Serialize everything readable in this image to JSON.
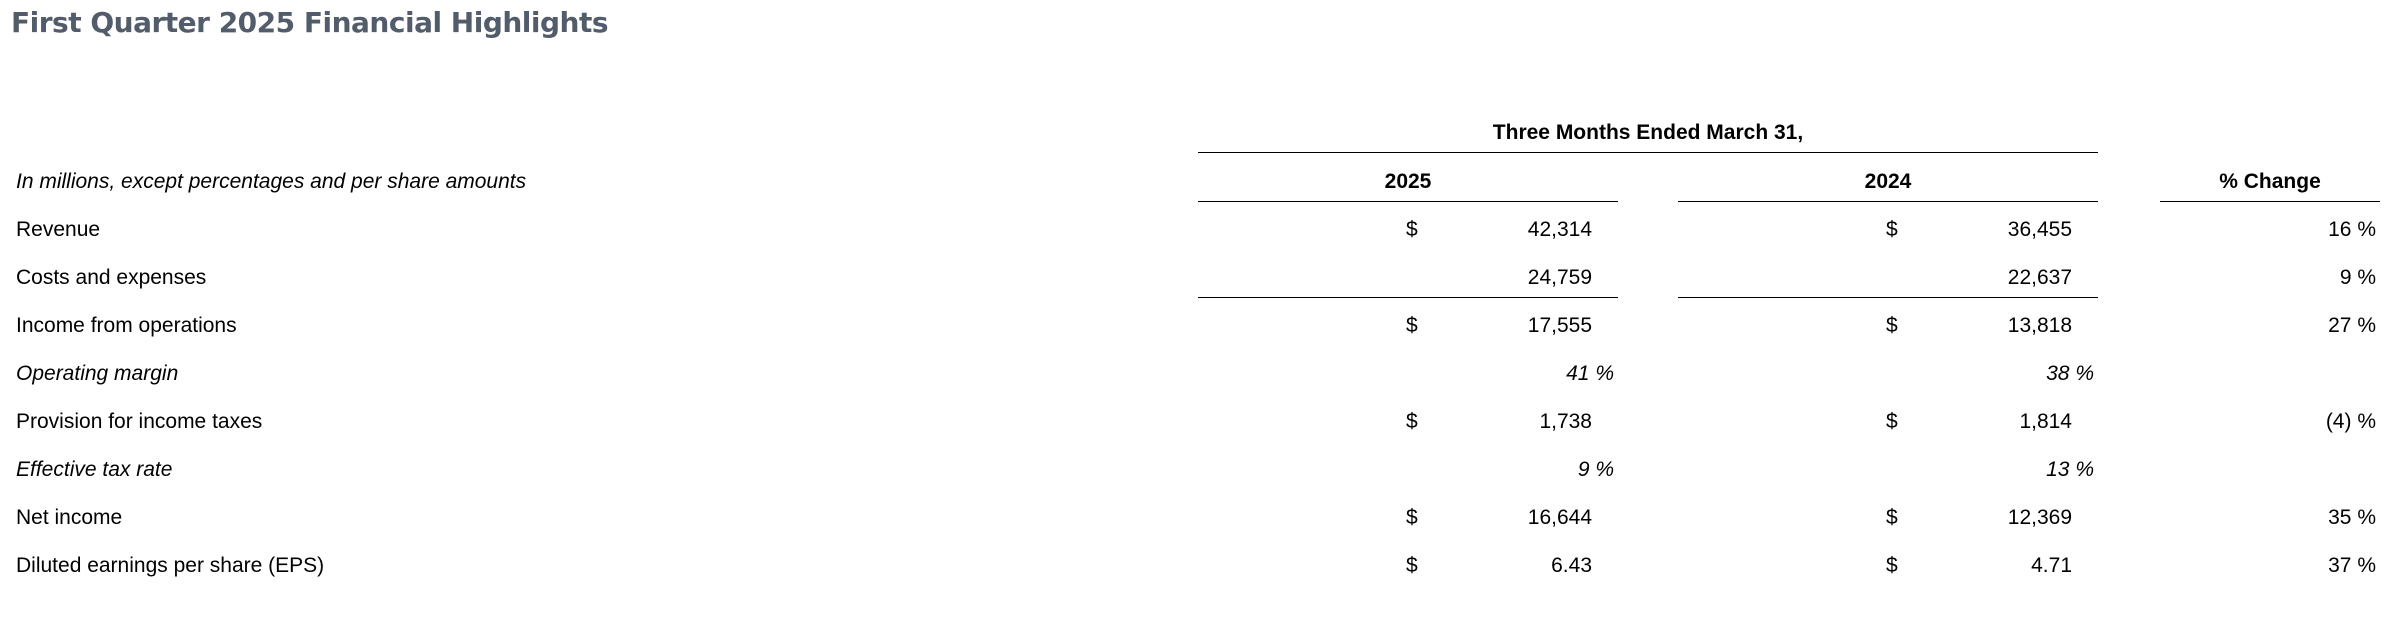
{
  "title": "First Quarter 2025 Financial Highlights",
  "table": {
    "period_header": "Three Months Ended March 31,",
    "units_note": "In millions, except percentages and per share amounts",
    "col_2025": "2025",
    "col_2024": "2024",
    "col_change": "% Change",
    "rows": [
      {
        "label": "Revenue",
        "italic": false,
        "cur2025": "$",
        "v2025": "42,314",
        "cur2024": "$",
        "v2024": "36,455",
        "change": "16 %"
      },
      {
        "label": "Costs and expenses",
        "italic": false,
        "cur2025": "",
        "v2025": "24,759",
        "cur2024": "",
        "v2024": "22,637",
        "change": "9 %"
      },
      {
        "label": "Income from operations",
        "italic": false,
        "cur2025": "$",
        "v2025": "17,555",
        "cur2024": "$",
        "v2024": "13,818",
        "change": "27 %"
      },
      {
        "label": "Operating margin",
        "italic": true,
        "cur2025": "",
        "v2025": "41 %",
        "cur2024": "",
        "v2024": "38 %",
        "change": ""
      },
      {
        "label": "Provision for income taxes",
        "italic": false,
        "cur2025": "$",
        "v2025": "1,738",
        "cur2024": "$",
        "v2024": "1,814",
        "change": "(4) %"
      },
      {
        "label": "Effective tax rate",
        "italic": true,
        "cur2025": "",
        "v2025": "9 %",
        "cur2024": "",
        "v2024": "13 %",
        "change": ""
      },
      {
        "label": "Net income",
        "italic": false,
        "cur2025": "$",
        "v2025": "16,644",
        "cur2024": "$",
        "v2024": "12,369",
        "change": "35 %"
      },
      {
        "label": "Diluted earnings per share (EPS)",
        "italic": false,
        "cur2025": "$",
        "v2025": "6.43",
        "cur2024": "$",
        "v2024": "4.71",
        "change": "37 %"
      }
    ]
  }
}
